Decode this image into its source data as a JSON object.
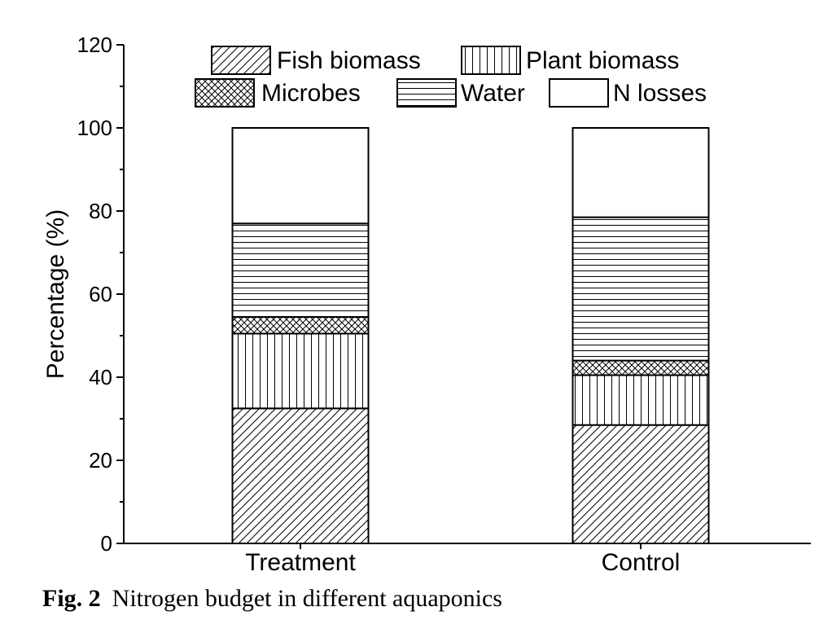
{
  "chart_data": {
    "type": "bar",
    "stacked": true,
    "categories": [
      "Treatment",
      "Control"
    ],
    "series": [
      {
        "name": "Fish biomass",
        "pattern": "diagonal",
        "values": [
          32.5,
          28.5
        ]
      },
      {
        "name": "Plant biomass",
        "pattern": "vertical",
        "values": [
          18.0,
          12.0
        ]
      },
      {
        "name": "Microbes",
        "pattern": "crosshatch",
        "values": [
          4.0,
          3.5
        ]
      },
      {
        "name": "Water",
        "pattern": "horizontal",
        "values": [
          22.5,
          34.5
        ]
      },
      {
        "name": "N losses",
        "pattern": "none",
        "values": [
          23.0,
          21.5
        ]
      }
    ],
    "title": "",
    "xlabel": "",
    "ylabel": "Percentage (%)",
    "ylim": [
      0,
      120
    ],
    "yticks": [
      0,
      20,
      40,
      60,
      80,
      100,
      120
    ],
    "grid": false,
    "legend_position": "top"
  },
  "caption": {
    "label": "Fig. 2",
    "text": "Nitrogen budget in different aquaponics"
  },
  "colors": {
    "stroke": "#000000",
    "background": "#ffffff"
  }
}
